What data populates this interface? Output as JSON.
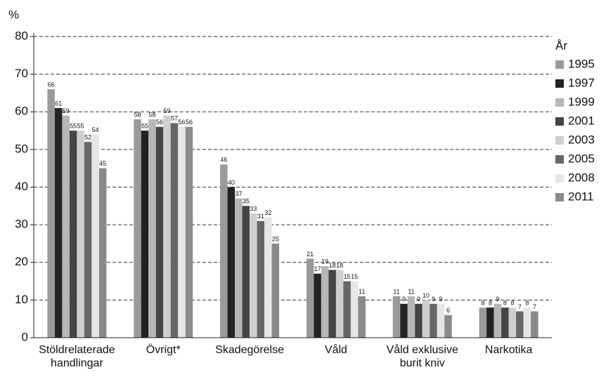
{
  "chart_data": {
    "type": "bar",
    "y_label": "%",
    "legend_title": "År",
    "categories": [
      [
        "Stöldrelaterade",
        "handlingar"
      ],
      [
        "Övrigt*"
      ],
      [
        "Skadegörelse"
      ],
      [
        "Våld"
      ],
      [
        "Våld exklusive",
        "burit kniv"
      ],
      [
        "Narkotika"
      ]
    ],
    "series": [
      {
        "name": "1995",
        "color": "#9a9a9a",
        "values": [
          66,
          58,
          46,
          21,
          11,
          8
        ]
      },
      {
        "name": "1997",
        "color": "#232323",
        "values": [
          61,
          55,
          40,
          17,
          9,
          8
        ]
      },
      {
        "name": "1999",
        "color": "#b6b6b6",
        "values": [
          59,
          58,
          37,
          19,
          11,
          9
        ]
      },
      {
        "name": "2001",
        "color": "#454545",
        "values": [
          55,
          56,
          35,
          18,
          9,
          8
        ]
      },
      {
        "name": "2003",
        "color": "#cfcfcf",
        "values": [
          55,
          59,
          33,
          18,
          10,
          8
        ]
      },
      {
        "name": "2005",
        "color": "#676767",
        "values": [
          52,
          57,
          31,
          15,
          9,
          7
        ]
      },
      {
        "name": "2008",
        "color": "#e6e6e6",
        "values": [
          54,
          56,
          32,
          15,
          9,
          8
        ]
      },
      {
        "name": "2011",
        "color": "#8a8a8a",
        "values": [
          45,
          56,
          25,
          11,
          6,
          7
        ]
      }
    ],
    "ylim": [
      0,
      80
    ],
    "yticks": [
      0,
      10,
      20,
      30,
      40,
      50,
      60,
      70,
      80
    ],
    "grid": true,
    "legend": "right"
  }
}
